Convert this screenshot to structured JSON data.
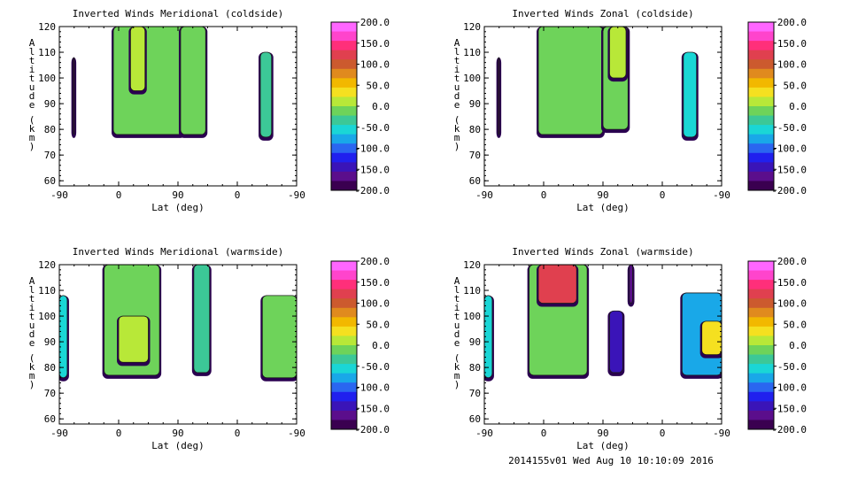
{
  "footer": "2014155v01 Wed Aug 10 10:10:09 2016",
  "colorbar": {
    "ticks": [
      "200.0",
      "150.0",
      "100.0",
      "50.0",
      "0.0",
      "-50.0",
      "-100.0",
      "-150.0",
      "-200.0"
    ],
    "colors": [
      "#ff66ff",
      "#ff44cc",
      "#ff2f7a",
      "#e0404f",
      "#cc5a2e",
      "#e08a1e",
      "#f2b800",
      "#f5e020",
      "#b8e838",
      "#6ed35a",
      "#3cc897",
      "#1ad6d6",
      "#19a8e8",
      "#2a66f0",
      "#2020ee",
      "#3a14b8",
      "#5b0e8c",
      "#3a0050"
    ]
  },
  "chart_data": [
    {
      "type": "heatmap",
      "title": "Inverted Winds Meridional (coldside)",
      "xlabel": "Lat (deg)",
      "ylabel": "Altitude (km)",
      "x_ticks": [
        "-90",
        "0",
        "90",
        "0",
        "-90"
      ],
      "y_ticks": [
        "120",
        "110",
        "100",
        "90",
        "80",
        "70",
        "60"
      ],
      "ylim": [
        58,
        120
      ],
      "value_range": [
        -200,
        200
      ],
      "blocks": [
        {
          "x": [
            -69,
            -67
          ],
          "y": [
            78,
            108
          ],
          "value": -200
        },
        {
          "x": [
            -8,
            99
          ],
          "y": [
            78,
            120
          ],
          "value": -10
        },
        {
          "x": [
            18,
            40
          ],
          "y": [
            95,
            120
          ],
          "value": 20
        },
        {
          "x": [
            94,
            132
          ],
          "y": [
            78,
            120
          ],
          "value": -15
        },
        {
          "x": [
            215,
            232
          ],
          "y": [
            77,
            110
          ],
          "value": -40
        }
      ]
    },
    {
      "type": "heatmap",
      "title": "Inverted Winds Zonal (coldside)",
      "xlabel": "Lat (deg)",
      "ylabel": "Altitude (km)",
      "x_ticks": [
        "-90",
        "0",
        "90",
        "0",
        "-90"
      ],
      "y_ticks": [
        "120",
        "110",
        "100",
        "90",
        "80",
        "70",
        "60"
      ],
      "ylim": [
        58,
        120
      ],
      "value_range": [
        -200,
        200
      ],
      "blocks": [
        {
          "x": [
            -69,
            -67
          ],
          "y": [
            78,
            108
          ],
          "value": -200
        },
        {
          "x": [
            -8,
            90
          ],
          "y": [
            78,
            120
          ],
          "value": -20
        },
        {
          "x": [
            90,
            128
          ],
          "y": [
            80,
            120
          ],
          "value": -10
        },
        {
          "x": [
            100,
            125
          ],
          "y": [
            100,
            120
          ],
          "value": 20
        },
        {
          "x": [
            212,
            232
          ],
          "y": [
            77,
            110
          ],
          "value": -60
        }
      ]
    },
    {
      "type": "heatmap",
      "title": "Inverted Winds Meridional (warmside)",
      "xlabel": "Lat (deg)",
      "ylabel": "Altitude (km)",
      "x_ticks": [
        "-90",
        "0",
        "90",
        "0",
        "-90"
      ],
      "y_ticks": [
        "120",
        "110",
        "100",
        "90",
        "80",
        "70",
        "60"
      ],
      "ylim": [
        58,
        120
      ],
      "value_range": [
        -200,
        200
      ],
      "blocks": [
        {
          "x": [
            -90,
            -78
          ],
          "y": [
            76,
            108
          ],
          "value": -60
        },
        {
          "x": [
            -22,
            62
          ],
          "y": [
            77,
            120
          ],
          "value": -20
        },
        {
          "x": [
            0,
            45
          ],
          "y": [
            82,
            100
          ],
          "value": 20
        },
        {
          "x": [
            114,
            138
          ],
          "y": [
            78,
            120
          ],
          "value": -30
        },
        {
          "x": [
            218,
            270
          ],
          "y": [
            76,
            108
          ],
          "value": -20
        }
      ]
    },
    {
      "type": "heatmap",
      "title": "Inverted Winds Zonal (warmside)",
      "xlabel": "Lat (deg)",
      "ylabel": "Altitude (km)",
      "x_ticks": [
        "-90",
        "0",
        "90",
        "0",
        "-90"
      ],
      "y_ticks": [
        "120",
        "110",
        "100",
        "90",
        "80",
        "70",
        "60"
      ],
      "ylim": [
        58,
        120
      ],
      "value_range": [
        -200,
        200
      ],
      "blocks": [
        {
          "x": [
            -90,
            -78
          ],
          "y": [
            76,
            108
          ],
          "value": -60
        },
        {
          "x": [
            -22,
            66
          ],
          "y": [
            77,
            120
          ],
          "value": -20
        },
        {
          "x": [
            -8,
            50
          ],
          "y": [
            105,
            120
          ],
          "value": 120
        },
        {
          "x": [
            100,
            120
          ],
          "y": [
            78,
            102
          ],
          "value": -140
        },
        {
          "x": [
            130,
            135
          ],
          "y": [
            105,
            120
          ],
          "value": -160
        },
        {
          "x": [
            210,
            270
          ],
          "y": [
            77,
            109
          ],
          "value": -80
        },
        {
          "x": [
            240,
            270
          ],
          "y": [
            85,
            98
          ],
          "value": 30
        }
      ]
    }
  ]
}
